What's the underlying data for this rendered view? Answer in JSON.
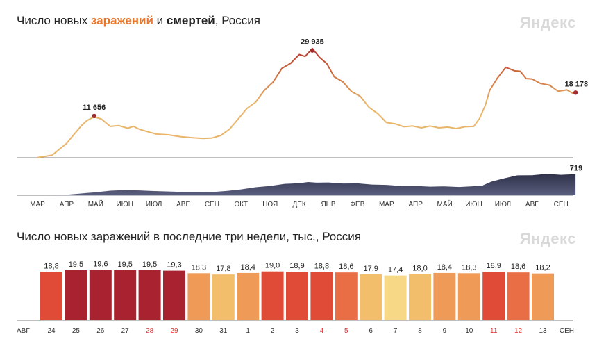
{
  "header1": {
    "title_prefix": "Число новых ",
    "title_infections": "заражений",
    "title_mid": " и ",
    "title_deaths": "смертей",
    "title_suffix": ", Россия",
    "logo": "Яндекс"
  },
  "header2": {
    "title": "Число новых заражений в последние три недели, тыс., Россия",
    "logo": "Яндекс"
  },
  "colors": {
    "infections_low": "#e8b56a",
    "infections_high": "#b53a32",
    "deaths": "#474a66",
    "bar_scale": [
      "#f7d886",
      "#f3be6c",
      "#ef9a57",
      "#e96d45",
      "#e04b38",
      "#a8232f"
    ]
  },
  "chart_data": [
    {
      "type": "line",
      "id": "infections",
      "x_axis": "months",
      "months": [
        "МАР",
        "АПР",
        "МАЙ",
        "ИЮН",
        "ИЮЛ",
        "АВГ",
        "СЕН",
        "ОКТ",
        "НОЯ",
        "ДЕК",
        "ЯНВ",
        "ФЕВ",
        "МАР",
        "АПР",
        "МАЙ",
        "ИЮН",
        "ИЮЛ",
        "АВГ",
        "СЕН"
      ],
      "series": [
        {
          "values": [
            [
              0,
              50
            ],
            [
              0.5,
              700
            ],
            [
              1.0,
              4000
            ],
            [
              1.2,
              6000
            ],
            [
              1.5,
              9000
            ],
            [
              1.7,
              10200
            ],
            [
              1.95,
              11656
            ],
            [
              2.2,
              10600
            ],
            [
              2.5,
              8900
            ],
            [
              2.8,
              8800
            ],
            [
              3.1,
              8400
            ],
            [
              3.3,
              8600
            ],
            [
              3.5,
              8100
            ],
            [
              3.8,
              7100
            ],
            [
              4.1,
              6600
            ],
            [
              4.5,
              6400
            ],
            [
              4.9,
              5900
            ],
            [
              5.3,
              5600
            ],
            [
              5.7,
              5400
            ],
            [
              6.0,
              5500
            ],
            [
              6.3,
              6200
            ],
            [
              6.6,
              7800
            ],
            [
              6.9,
              11000
            ],
            [
              7.2,
              13500
            ],
            [
              7.5,
              15800
            ],
            [
              7.8,
              18500
            ],
            [
              8.1,
              21500
            ],
            [
              8.4,
              24500
            ],
            [
              8.7,
              26800
            ],
            [
              9.0,
              28300
            ],
            [
              9.2,
              28800
            ],
            [
              9.45,
              29935
            ],
            [
              9.7,
              28500
            ],
            [
              9.95,
              25800
            ],
            [
              10.2,
              23000
            ],
            [
              10.5,
              20800
            ],
            [
              10.8,
              18800
            ],
            [
              11.1,
              16800
            ],
            [
              11.4,
              14300
            ],
            [
              11.7,
              12100
            ],
            [
              12.0,
              10000
            ],
            [
              12.3,
              9300
            ],
            [
              12.6,
              8800
            ],
            [
              12.9,
              8700
            ],
            [
              13.2,
              8500
            ],
            [
              13.5,
              8700
            ],
            [
              13.8,
              8500
            ],
            [
              14.1,
              8400
            ],
            [
              14.4,
              8300
            ],
            [
              14.7,
              8500
            ],
            [
              15.0,
              8900
            ],
            [
              15.2,
              10800
            ],
            [
              15.4,
              15000
            ],
            [
              15.55,
              18500
            ],
            [
              15.8,
              22500
            ],
            [
              16.1,
              24800
            ],
            [
              16.4,
              24700
            ],
            [
              16.6,
              23700
            ],
            [
              16.8,
              22500
            ],
            [
              17.0,
              21600
            ],
            [
              17.3,
              21100
            ],
            [
              17.6,
              19900
            ],
            [
              17.9,
              18900
            ],
            [
              18.2,
              18600
            ],
            [
              18.4,
              18300
            ],
            [
              18.5,
              18178
            ]
          ]
        }
      ],
      "annotations": [
        {
          "label": "11 656",
          "x": 1.95,
          "y": 11656
        },
        {
          "label": "29 935",
          "x": 9.45,
          "y": 29935
        },
        {
          "label": "18 178",
          "x": 18.5,
          "y": 18178
        }
      ],
      "ylim": [
        0,
        32000
      ]
    },
    {
      "type": "area",
      "id": "deaths",
      "series": [
        {
          "values": [
            [
              0,
              0
            ],
            [
              0.5,
              5
            ],
            [
              1.0,
              20
            ],
            [
              1.5,
              60
            ],
            [
              2.0,
              105
            ],
            [
              2.5,
              150
            ],
            [
              3.0,
              180
            ],
            [
              3.5,
              160
            ],
            [
              4.0,
              145
            ],
            [
              4.5,
              125
            ],
            [
              5.0,
              115
            ],
            [
              5.5,
              110
            ],
            [
              6.0,
              112
            ],
            [
              6.5,
              140
            ],
            [
              7.0,
              205
            ],
            [
              7.5,
              265
            ],
            [
              8.0,
              325
            ],
            [
              8.5,
              380
            ],
            [
              9.0,
              420
            ],
            [
              9.3,
              440
            ],
            [
              9.6,
              440
            ],
            [
              10.0,
              425
            ],
            [
              10.5,
              410
            ],
            [
              11.0,
              395
            ],
            [
              11.5,
              375
            ],
            [
              12.0,
              345
            ],
            [
              12.5,
              325
            ],
            [
              13.0,
              310
            ],
            [
              13.5,
              300
            ],
            [
              14.0,
              295
            ],
            [
              14.5,
              290
            ],
            [
              15.0,
              300
            ],
            [
              15.3,
              340
            ],
            [
              15.6,
              450
            ],
            [
              16.0,
              580
            ],
            [
              16.5,
              660
            ],
            [
              17.0,
              700
            ],
            [
              17.5,
              710
            ],
            [
              18.0,
              715
            ],
            [
              18.5,
              719
            ]
          ]
        }
      ],
      "annotations": [
        {
          "label": "719",
          "x": 18.5,
          "y": 719
        }
      ],
      "ylim": [
        0,
        900
      ]
    },
    {
      "type": "bar",
      "id": "three_weeks",
      "title": "Число новых заражений в последние три недели, тыс., Россия",
      "start_label": "АВГ",
      "end_label": "СЕН",
      "categories": [
        "24",
        "25",
        "26",
        "27",
        "28",
        "29",
        "30",
        "31",
        "1",
        "2",
        "3",
        "4",
        "5",
        "6",
        "7",
        "8",
        "9",
        "10",
        "11",
        "12",
        "13"
      ],
      "weekend": [
        "28",
        "29",
        "4",
        "5",
        "11",
        "12"
      ],
      "values": [
        18.8,
        19.5,
        19.6,
        19.5,
        19.5,
        19.3,
        18.3,
        17.8,
        18.4,
        19.0,
        18.9,
        18.8,
        18.6,
        17.9,
        17.4,
        18.0,
        18.4,
        18.3,
        18.9,
        18.6,
        18.2
      ],
      "value_labels": [
        "18,8",
        "19,5",
        "19,6",
        "19,5",
        "19,5",
        "19,3",
        "18,3",
        "17,8",
        "18,4",
        "19,0",
        "18,9",
        "18,8",
        "18,6",
        "17,9",
        "17,4",
        "18,0",
        "18,4",
        "18,3",
        "18,9",
        "18,6",
        "18,2"
      ],
      "ylim": [
        0,
        20
      ]
    }
  ]
}
